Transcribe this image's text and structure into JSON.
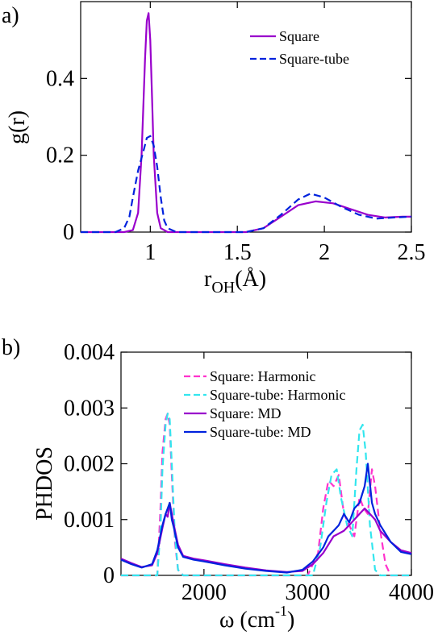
{
  "chart_data": [
    {
      "type": "line",
      "panel_label": "a)",
      "xlabel_main": "r",
      "xlabel_sub": "OH",
      "xlabel_tail": "(Å)",
      "ylabel": "g(r)",
      "xlim": [
        0.6,
        2.5
      ],
      "ylim": [
        0,
        0.6
      ],
      "xticks": [
        1,
        1.5,
        2,
        2.5
      ],
      "xtick_labels": [
        "1",
        "1.5",
        "2",
        "2.5"
      ],
      "yticks": [
        0,
        0.2,
        0.4
      ],
      "ytick_labels": [
        "0",
        "0.2",
        "0.4"
      ],
      "legend_position": "top-right",
      "series": [
        {
          "name": "Square",
          "color": "#9900cc",
          "dash": "solid",
          "x": [
            0.6,
            0.85,
            0.9,
            0.93,
            0.95,
            0.97,
            0.98,
            0.99,
            1.0,
            1.01,
            1.02,
            1.04,
            1.06,
            1.1,
            1.2,
            1.4,
            1.55,
            1.65,
            1.75,
            1.85,
            1.95,
            2.05,
            2.15,
            2.25,
            2.35,
            2.45,
            2.5
          ],
          "y": [
            0,
            0,
            0.005,
            0.05,
            0.2,
            0.45,
            0.55,
            0.57,
            0.5,
            0.35,
            0.2,
            0.05,
            0.01,
            0,
            0,
            0,
            0,
            0.01,
            0.04,
            0.07,
            0.08,
            0.075,
            0.06,
            0.045,
            0.038,
            0.04,
            0.04
          ]
        },
        {
          "name": "Square-tube",
          "color": "#0022dd",
          "dash": "dashed",
          "x": [
            0.6,
            0.8,
            0.85,
            0.88,
            0.9,
            0.93,
            0.96,
            0.98,
            1.0,
            1.02,
            1.04,
            1.06,
            1.08,
            1.1,
            1.15,
            1.25,
            1.4,
            1.55,
            1.65,
            1.75,
            1.85,
            1.92,
            2.0,
            2.1,
            2.2,
            2.3,
            2.4,
            2.5
          ],
          "y": [
            0,
            0,
            0.01,
            0.04,
            0.09,
            0.16,
            0.21,
            0.245,
            0.25,
            0.225,
            0.17,
            0.09,
            0.03,
            0.01,
            0,
            0,
            0,
            0,
            0.01,
            0.045,
            0.085,
            0.1,
            0.09,
            0.065,
            0.045,
            0.035,
            0.038,
            0.04
          ]
        }
      ]
    },
    {
      "type": "line",
      "panel_label": "b)",
      "xlabel": "ω (cm",
      "xlabel_sup": "-1",
      "xlabel_tail": ")",
      "ylabel": "PHDOS",
      "xlim": [
        1200,
        4000
      ],
      "ylim": [
        0,
        0.004
      ],
      "xticks": [
        2000,
        3000,
        4000
      ],
      "xtick_labels": [
        "2000",
        "3000",
        "4000"
      ],
      "yticks": [
        0,
        0.001,
        0.002,
        0.003,
        0.004
      ],
      "ytick_labels": [
        "0",
        "0.001",
        "0.002",
        "0.003",
        "0.004"
      ],
      "legend_position": "top",
      "series": [
        {
          "name": "Square: Harmonic",
          "color": "#ff33cc",
          "dash": "dashed",
          "x": [
            1200,
            1400,
            1550,
            1580,
            1600,
            1630,
            1650,
            1670,
            1690,
            1720,
            1750,
            1800,
            2500,
            3000,
            3100,
            3150,
            3200,
            3250,
            3300,
            3350,
            3400,
            3450,
            3500,
            3540,
            3580,
            3620,
            3650,
            3700,
            3750,
            3800,
            4000
          ],
          "y": [
            0,
            0,
            0,
            0.0012,
            0.0022,
            0.0028,
            0.0029,
            0.0027,
            0.0018,
            0.0006,
            0.0001,
            0,
            0,
            0,
            0.0004,
            0.0012,
            0.0017,
            0.0016,
            0.0018,
            0.0011,
            0.0009,
            0.0007,
            0.0014,
            0.0012,
            0.0011,
            0.0019,
            0.0016,
            0.0008,
            0.0002,
            0,
            0
          ]
        },
        {
          "name": "Square-tube: Harmonic",
          "color": "#33e6ee",
          "dash": "dashed",
          "x": [
            1200,
            1400,
            1550,
            1580,
            1600,
            1630,
            1650,
            1670,
            1690,
            1720,
            1750,
            1800,
            2500,
            3050,
            3120,
            3180,
            3230,
            3280,
            3320,
            3380,
            3430,
            3470,
            3500,
            3530,
            3560,
            3600,
            3650,
            3700,
            4000
          ],
          "y": [
            0,
            0,
            0,
            0.0008,
            0.0019,
            0.0027,
            0.0029,
            0.0028,
            0.002,
            0.0007,
            0.0001,
            0,
            0,
            0,
            0.0005,
            0.0013,
            0.0018,
            0.0019,
            0.0014,
            0.0009,
            0.0007,
            0.0019,
            0.0026,
            0.0027,
            0.0022,
            0.0009,
            0.0001,
            0,
            0
          ]
        },
        {
          "name": "Square: MD",
          "color": "#9900cc",
          "dash": "solid",
          "x": [
            1200,
            1300,
            1400,
            1500,
            1550,
            1600,
            1630,
            1650,
            1670,
            1690,
            1710,
            1750,
            1800,
            1900,
            2000,
            2200,
            2400,
            2600,
            2800,
            2950,
            3050,
            3150,
            3200,
            3250,
            3300,
            3350,
            3400,
            3450,
            3500,
            3550,
            3600,
            3650,
            3700,
            3800,
            3900,
            4000
          ],
          "y": [
            0.0003,
            0.00022,
            0.00015,
            0.00018,
            0.0004,
            0.00085,
            0.0011,
            0.00105,
            0.0013,
            0.0011,
            0.0009,
            0.00055,
            0.00035,
            0.0003,
            0.00027,
            0.0002,
            0.00014,
            9e-05,
            6e-05,
            8e-05,
            0.0002,
            0.0004,
            0.00055,
            0.0007,
            0.00075,
            0.0008,
            0.0009,
            0.001,
            0.0011,
            0.0012,
            0.0011,
            0.001,
            0.0008,
            0.0006,
            0.00045,
            0.0004
          ]
        },
        {
          "name": "Square-tube: MD",
          "color": "#0022dd",
          "dash": "solid",
          "x": [
            1200,
            1300,
            1400,
            1500,
            1550,
            1600,
            1630,
            1650,
            1670,
            1690,
            1710,
            1750,
            1800,
            1900,
            2000,
            2200,
            2400,
            2600,
            2800,
            2950,
            3050,
            3150,
            3200,
            3250,
            3300,
            3350,
            3400,
            3450,
            3500,
            3550,
            3580,
            3620,
            3650,
            3700,
            3800,
            3900,
            4000
          ],
          "y": [
            0.00028,
            0.0002,
            0.00014,
            0.0002,
            0.00045,
            0.0009,
            0.0011,
            0.0012,
            0.0013,
            0.001,
            0.00085,
            0.0005,
            0.00033,
            0.00028,
            0.00025,
            0.00018,
            0.00012,
            8e-05,
            5e-05,
            0.0001,
            0.00025,
            0.0005,
            0.0007,
            0.0008,
            0.0009,
            0.0011,
            0.00095,
            0.0012,
            0.0013,
            0.0016,
            0.002,
            0.0013,
            0.0011,
            0.0009,
            0.0006,
            0.00042,
            0.00038
          ]
        }
      ]
    }
  ]
}
